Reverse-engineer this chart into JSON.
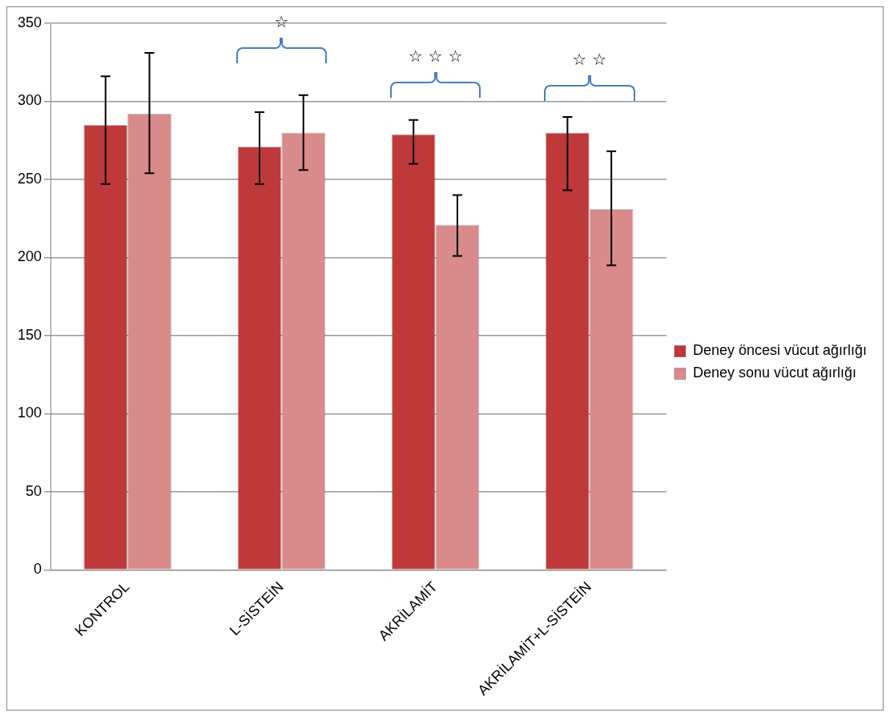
{
  "chart_data": {
    "type": "bar",
    "categories": [
      "KONTROL",
      "L-SİSTEİN",
      "AKRİLAMİT",
      "AKRİLAMİT+L-SİSTEİN"
    ],
    "series": [
      {
        "name": "Deney öncesi vücut ağırlığı",
        "color": "#c0393a",
        "values": [
          285,
          271,
          279,
          280
        ],
        "errors": [
          [
            247,
            316
          ],
          [
            247,
            293
          ],
          [
            260,
            288
          ],
          [
            243,
            290
          ]
        ]
      },
      {
        "name": "Deney sonu vücut ağırlığı",
        "color": "#d98a8a",
        "values": [
          292,
          280,
          221,
          231
        ],
        "errors": [
          [
            254,
            331
          ],
          [
            256,
            304
          ],
          [
            201,
            240
          ],
          [
            195,
            268
          ]
        ]
      }
    ],
    "ylim": [
      0,
      350
    ],
    "yticks": [
      0,
      50,
      100,
      150,
      200,
      250,
      300,
      350
    ],
    "grid": "y",
    "legend": "right",
    "annotations": [
      "☆",
      "☆ ☆ ☆",
      "☆ ☆"
    ]
  }
}
